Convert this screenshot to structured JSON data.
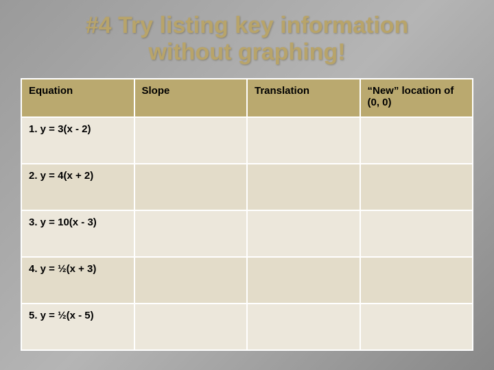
{
  "title_line1": "#4 Try listing key information",
  "title_line2": "without graphing!",
  "table": {
    "columns": [
      "Equation",
      "Slope",
      "Translation",
      "“New” location of (0, 0)"
    ],
    "rows": [
      {
        "equation": "1. y = 3(x - 2)",
        "slope": "",
        "translation": "",
        "newloc": ""
      },
      {
        "equation": "2. y = 4(x + 2)",
        "slope": "",
        "translation": "",
        "newloc": ""
      },
      {
        "equation": "3. y = 10(x - 3)",
        "slope": "",
        "translation": "",
        "newloc": ""
      },
      {
        "equation": "4. y = ½(x + 3)",
        "slope": "",
        "translation": "",
        "newloc": ""
      },
      {
        "equation": "5. y = ½(x - 5)",
        "slope": "",
        "translation": "",
        "newloc": ""
      }
    ]
  },
  "colors": {
    "title_color": "#b8a46a",
    "header_bg": "#baa96f",
    "row_bg_odd": "#ece7db",
    "row_bg_even": "#e3dcc9",
    "border": "#ffffff",
    "slide_bg_gradient": [
      "#9a9a9a",
      "#b5b5b5",
      "#888888"
    ]
  },
  "typography": {
    "title_fontsize": 34,
    "header_fontsize": 15,
    "cell_fontsize": 15
  }
}
